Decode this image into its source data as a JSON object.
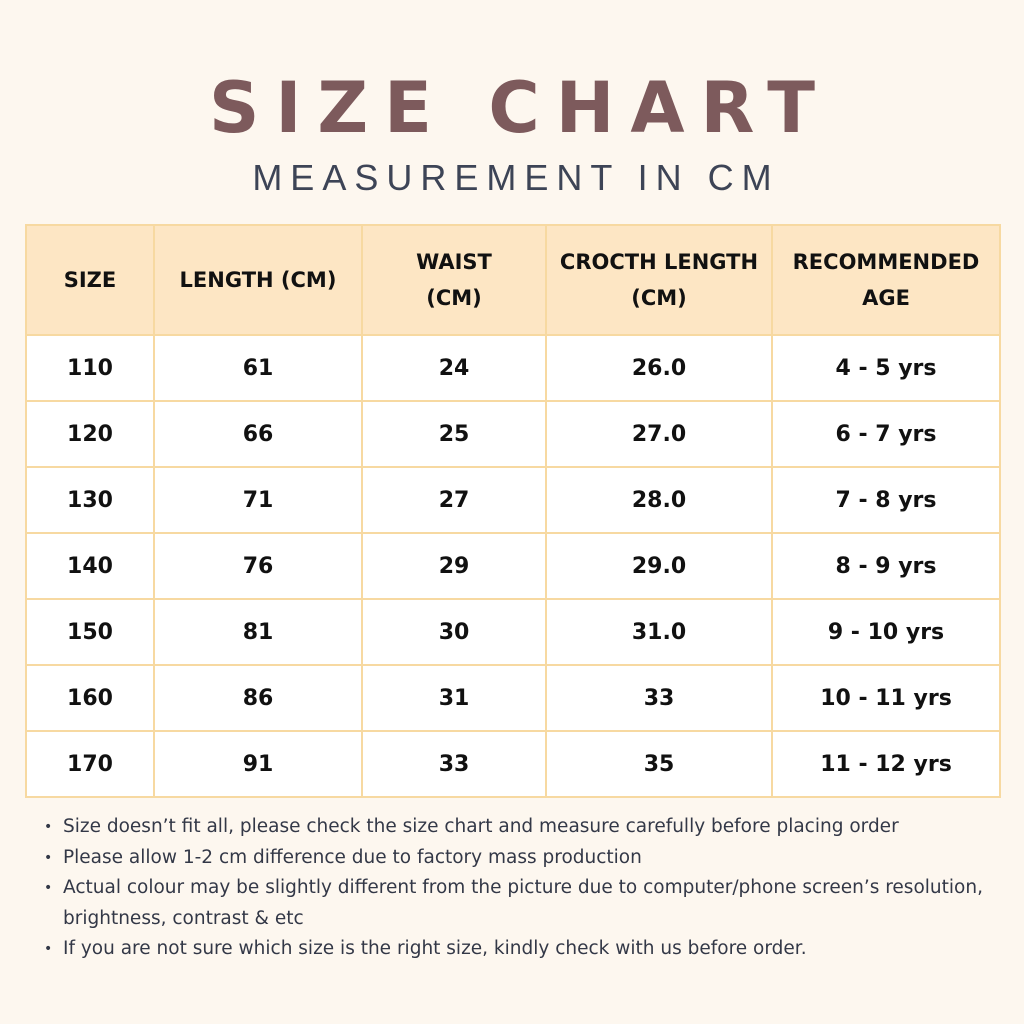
{
  "title": "SIZE CHART",
  "subtitle": "MEASUREMENT IN CM",
  "table": {
    "headers": [
      "SIZE",
      "LENGTH (CM)",
      "WAIST\n(CM)",
      "CROCTH LENGTH\n(CM)",
      "RECOMMENDED\nAGE"
    ],
    "rows": [
      [
        "110",
        "61",
        "24",
        "26.0",
        "4 - 5 yrs"
      ],
      [
        "120",
        "66",
        "25",
        "27.0",
        "6 - 7 yrs"
      ],
      [
        "130",
        "71",
        "27",
        "28.0",
        "7 - 8 yrs"
      ],
      [
        "140",
        "76",
        "29",
        "29.0",
        "8 - 9 yrs"
      ],
      [
        "150",
        "81",
        "30",
        "31.0",
        "9 - 10 yrs"
      ],
      [
        "160",
        "86",
        "31",
        "33",
        "10 - 11 yrs"
      ],
      [
        "170",
        "91",
        "33",
        "35",
        "11 - 12 yrs"
      ]
    ]
  },
  "notes": [
    "Size doesn’t fit all, please check the size chart and measure carefully before placing order",
    "Please allow 1-2 cm difference due to factory mass production",
    "Actual colour may be slightly different from the picture due to computer/phone screen’s resolution, brightness, contrast & etc",
    "If you are not sure which size is the right size, kindly check with us before order."
  ],
  "colors": {
    "background": "#fdf7ef",
    "title": "#7d5a5c",
    "subtitle": "#3d4456",
    "header_fill": "#fde6c4",
    "border": "#f7d9a1",
    "cell_fill": "#ffffff"
  }
}
